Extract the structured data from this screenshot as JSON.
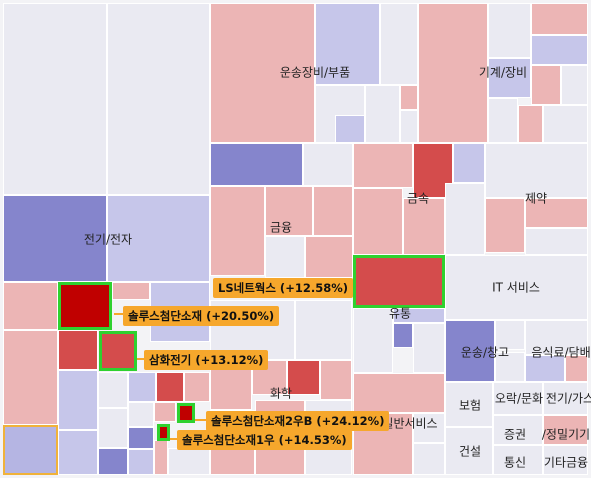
{
  "chart_data": {
    "type": "heatmap",
    "sectors": [
      "전기/전자",
      "운송장비/부품",
      "기계/장비",
      "금속",
      "제약",
      "금융",
      "유통",
      "IT 서비스",
      "운송/창고",
      "음식료/담배",
      "화학",
      "보험",
      "일반서비스",
      "오락/문화",
      "전기/가스",
      "증권",
      "건설",
      "정밀기기",
      "통신",
      "기타금융"
    ],
    "highlighted_stocks": [
      {
        "name": "LS네트웍스",
        "change": 12.58,
        "label": "LS네트웍스 (+12.58%)"
      },
      {
        "name": "솔루스첨단소재",
        "change": 20.5,
        "label": "솔루스첨단소재 (+20.50%)"
      },
      {
        "name": "삼화전기",
        "change": 13.12,
        "label": "삼화전기 (+13.12%)"
      },
      {
        "name": "솔루스첨단소재2우B",
        "change": 24.12,
        "label": "솔루스첨단소재2우B (+24.12%)"
      },
      {
        "name": "솔루스첨단소재1우",
        "change": 14.53,
        "label": "솔루스첨단소재1우 (+14.53%)"
      }
    ]
  },
  "labels": {
    "s_elec": "전기/전자",
    "s_auto": "운송장비/부품",
    "s_mach": "기계/장비",
    "s_metal": "금속",
    "s_pharma": "제약",
    "s_fin": "금융",
    "s_dist": "유통",
    "s_it": "IT 서비스",
    "s_trans": "운송/창고",
    "s_food": "음식료/담배",
    "s_chem": "화학",
    "s_ins": "보험",
    "s_gen": "일반서비스",
    "s_ent": "오락/문화",
    "s_util": "전기/가스",
    "s_sec": "증권",
    "s_cons": "건설",
    "s_prec": "/정밀기기",
    "s_tel": "통신",
    "s_oth": "기타금융"
  },
  "colors": {
    "strong_up": "#c00000",
    "up": "#d44c4c",
    "mild_up": "#ecb5b5",
    "flat": "#eaeaf2",
    "mild_down": "#c6c6ea",
    "down": "#8585cc",
    "highlight_border": "#2fd12f",
    "callout_bg": "#f6a72c"
  }
}
